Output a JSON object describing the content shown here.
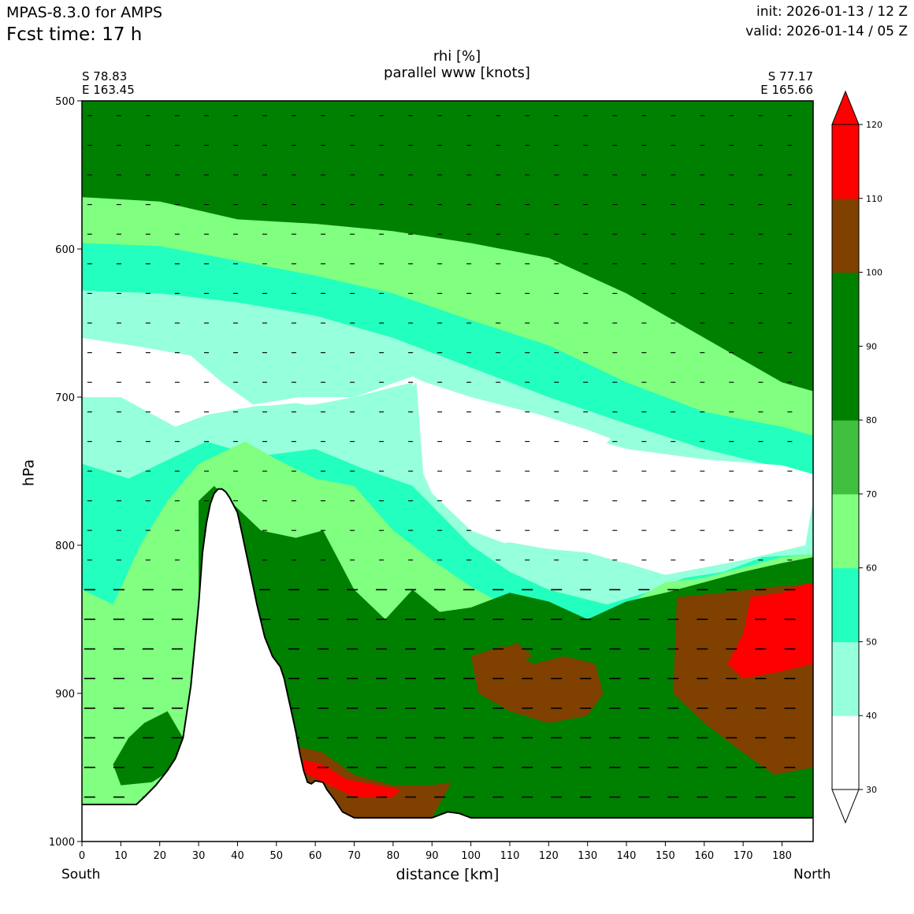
{
  "header": {
    "model": "MPAS-8.3.0 for AMPS",
    "fcst_time": "Fcst time:   17 h",
    "init": "init: 2026-01-13 / 12 Z",
    "valid": "valid: 2026-01-14 / 05 Z"
  },
  "corners": {
    "left_lat": "S 78.83",
    "left_lon": "E 163.45",
    "right_lat": "S 77.17",
    "right_lon": "E 165.66"
  },
  "direction": {
    "start": "South",
    "end": "North"
  },
  "colors": {
    "c30": "#ffffff",
    "c40": "#96ffdc",
    "c50": "#23ffbe",
    "c60": "#80ff80",
    "c70": "#40bf40",
    "c80": "#008000",
    "c100": "#804000",
    "c110": "#ff0000",
    "terrain": "#ffffff"
  },
  "chart_data": {
    "type": "contour_cross_section",
    "title": "rhi [%]",
    "subtitle": "parallel www [knots]",
    "xlabel": "distance [km]",
    "ylabel": "hPa",
    "xlim": [
      0,
      188
    ],
    "ylim": [
      1000,
      500
    ],
    "xticks": [
      "0",
      "10",
      "20",
      "30",
      "40",
      "50",
      "60",
      "70",
      "80",
      "90",
      "100",
      "110",
      "120",
      "130",
      "140",
      "150",
      "160",
      "170",
      "180"
    ],
    "yticks": [
      "500",
      "600",
      "700",
      "800",
      "900",
      "1000"
    ],
    "colorbar": {
      "levels": [
        30,
        40,
        50,
        60,
        70,
        80,
        90,
        100,
        110,
        120
      ],
      "labels": [
        "30",
        "40",
        "50",
        "60",
        "70",
        "80",
        "90",
        "100",
        "110",
        "120"
      ],
      "extend": "both"
    },
    "terrain": [
      [
        0,
        975
      ],
      [
        12,
        975
      ],
      [
        14,
        975
      ],
      [
        16,
        970
      ],
      [
        19,
        962
      ],
      [
        22,
        952
      ],
      [
        24,
        944
      ],
      [
        26,
        930
      ],
      [
        28,
        895
      ],
      [
        30,
        840
      ],
      [
        31,
        805
      ],
      [
        32,
        785
      ],
      [
        33,
        772
      ],
      [
        34,
        765
      ],
      [
        35,
        762
      ],
      [
        36,
        762
      ],
      [
        37,
        764
      ],
      [
        38,
        768
      ],
      [
        40,
        778
      ],
      [
        41,
        790
      ],
      [
        43,
        815
      ],
      [
        45,
        840
      ],
      [
        47,
        862
      ],
      [
        49,
        875
      ],
      [
        51,
        882
      ],
      [
        52,
        890
      ],
      [
        53,
        902
      ],
      [
        54,
        914
      ],
      [
        55,
        926
      ],
      [
        56,
        940
      ],
      [
        57,
        952
      ],
      [
        58,
        960
      ],
      [
        59,
        961
      ],
      [
        60,
        959
      ],
      [
        62,
        960
      ],
      [
        63,
        965
      ],
      [
        65,
        972
      ],
      [
        67,
        980
      ],
      [
        70,
        984
      ],
      [
        76,
        984
      ],
      [
        80,
        984
      ],
      [
        86,
        984
      ],
      [
        90,
        984
      ],
      [
        92,
        982
      ],
      [
        94,
        980
      ],
      [
        97,
        981
      ],
      [
        100,
        984
      ],
      [
        188,
        984
      ]
    ],
    "bands": [
      {
        "level": 40,
        "top": [
          [
            0,
            628
          ],
          [
            20,
            630
          ],
          [
            40,
            636
          ],
          [
            60,
            645
          ],
          [
            80,
            660
          ],
          [
            100,
            680
          ],
          [
            120,
            700
          ],
          [
            140,
            718
          ],
          [
            160,
            735
          ],
          [
            180,
            748
          ],
          [
            188,
            752
          ]
        ]
      },
      {
        "level": 50,
        "top": [
          [
            0,
            596
          ],
          [
            20,
            598
          ],
          [
            40,
            608
          ],
          [
            60,
            618
          ],
          [
            80,
            630
          ],
          [
            100,
            648
          ],
          [
            120,
            665
          ],
          [
            140,
            690
          ],
          [
            160,
            710
          ],
          [
            180,
            720
          ],
          [
            188,
            726
          ]
        ]
      },
      {
        "level": 60,
        "top": [
          [
            0,
            565
          ],
          [
            20,
            568
          ],
          [
            40,
            580
          ],
          [
            60,
            583
          ],
          [
            80,
            588
          ],
          [
            100,
            596
          ],
          [
            120,
            606
          ],
          [
            140,
            630
          ],
          [
            160,
            660
          ],
          [
            180,
            690
          ],
          [
            188,
            696
          ]
        ]
      }
    ]
  }
}
